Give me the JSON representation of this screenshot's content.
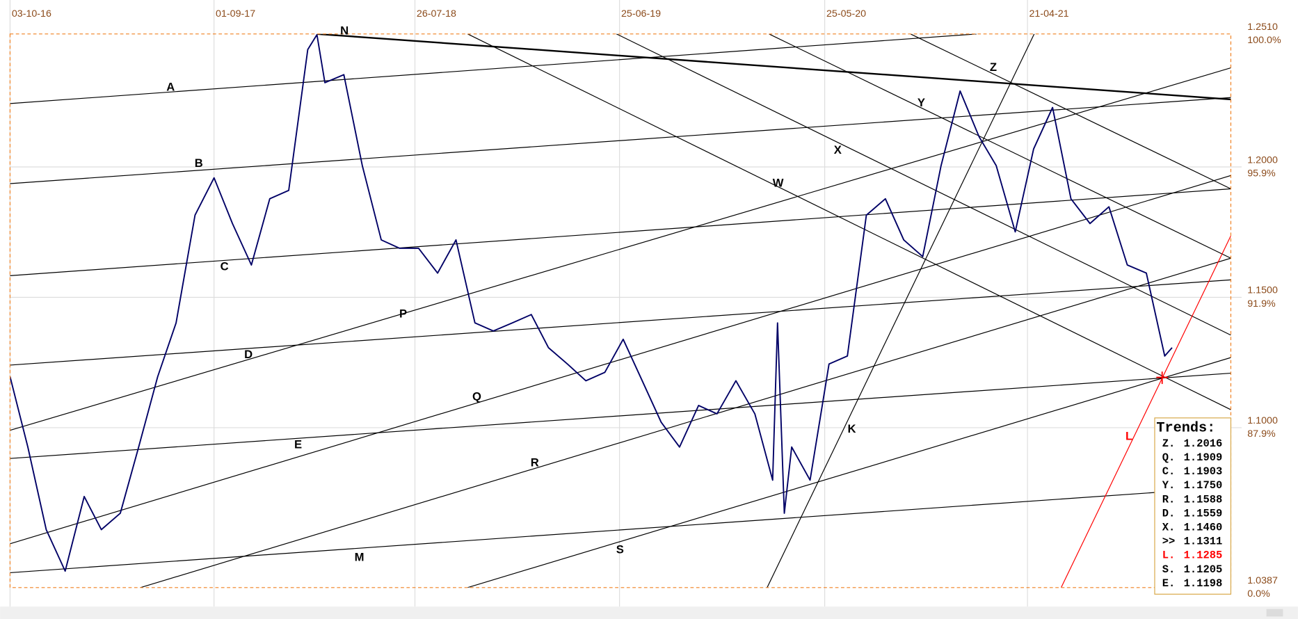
{
  "chart_data": {
    "type": "line",
    "xlim": [
      "03-10-16",
      "19-03-22"
    ],
    "xticks": [
      "03-10-16",
      "01-09-17",
      "26-07-18",
      "25-06-19",
      "25-05-20",
      "21-04-21"
    ],
    "ylim": [
      1.0387,
      1.251
    ],
    "yticks": [
      {
        "value": 1.251,
        "label": "1.2510"
      },
      {
        "value": 1.2,
        "label": "1.2000"
      },
      {
        "value": 1.15,
        "label": "1.1500"
      },
      {
        "value": 1.1,
        "label": "1.1000"
      },
      {
        "value": 1.0387,
        "label": "1.0387"
      }
    ],
    "y_percent_labels": [
      "100.0%",
      "95.9%",
      "91.9%",
      "87.9%",
      "0.0%"
    ],
    "grid": true,
    "series": [
      {
        "color": "#000066",
        "x": [
          "03-10-16",
          "01-11-16",
          "01-12-16",
          "01-01-17",
          "01-02-17",
          "01-03-17",
          "01-04-17",
          "01-05-17",
          "01-06-17",
          "01-07-17",
          "01-08-17",
          "01-09-17",
          "01-10-17",
          "01-11-17",
          "01-12-17",
          "01-01-18",
          "01-02-18",
          "16-02-18",
          "01-03-18",
          "01-04-18",
          "01-05-18",
          "01-06-18",
          "01-07-18",
          "01-08-18",
          "01-09-18",
          "01-10-18",
          "01-11-18",
          "01-12-18",
          "01-01-19",
          "01-02-19",
          "01-03-19",
          "01-04-19",
          "01-05-19",
          "01-06-19",
          "01-07-19",
          "01-08-19",
          "01-09-19",
          "01-10-19",
          "01-11-19",
          "01-12-19",
          "01-01-20",
          "01-02-20",
          "01-03-20",
          "09-03-20",
          "20-03-20",
          "01-04-20",
          "01-05-20",
          "01-06-20",
          "01-07-20",
          "01-08-20",
          "01-09-20",
          "01-10-20",
          "01-11-20",
          "01-12-20",
          "01-01-21",
          "01-02-21",
          "01-03-21",
          "01-04-21",
          "01-05-21",
          "01-06-21",
          "01-07-21",
          "01-08-21",
          "01-09-21",
          "01-10-21",
          "01-11-21",
          "01-12-21",
          "13-12-21"
        ],
        "values": [
          1.1196,
          1.0926,
          1.0609,
          1.045,
          1.0736,
          1.0609,
          1.0672,
          1.0926,
          1.1196,
          1.1402,
          1.1815,
          1.1958,
          1.1783,
          1.1624,
          1.1878,
          1.191,
          1.245,
          1.2507,
          1.2323,
          1.2354,
          1.2005,
          1.172,
          1.1688,
          1.1688,
          1.1593,
          1.172,
          1.1402,
          1.1371,
          1.1402,
          1.1434,
          1.1307,
          1.1244,
          1.118,
          1.1212,
          1.1339,
          1.118,
          1.1021,
          1.0926,
          1.1085,
          1.1053,
          1.118,
          1.1053,
          1.0799,
          1.1402,
          1.0672,
          1.0926,
          1.0799,
          1.1244,
          1.1275,
          1.1815,
          1.1878,
          1.172,
          1.1656,
          1.2005,
          1.2291,
          1.2116,
          1.2005,
          1.1751,
          1.2069,
          1.2228,
          1.1878,
          1.1783,
          1.1847,
          1.1624,
          1.1593,
          1.1275,
          1.1307
        ]
      }
    ],
    "trendlines": [
      {
        "name": "N",
        "color": "#000000",
        "width": 2,
        "x": [
          "16-02-18",
          "19-03-22"
        ],
        "y": [
          1.251,
          1.2259
        ]
      },
      {
        "name": "A",
        "color": "#000000",
        "width": 1,
        "x": [
          "03-10-16",
          "28-01-21"
        ],
        "y": [
          1.2243,
          1.251
        ]
      },
      {
        "name": "B",
        "color": "#000000",
        "width": 1,
        "x": [
          "03-10-16",
          "19-03-22"
        ],
        "y": [
          1.1936,
          1.2266
        ]
      },
      {
        "name": "C",
        "color": "#000000",
        "width": 1,
        "x": [
          "03-10-16",
          "19-03-22"
        ],
        "y": [
          1.1583,
          1.1916
        ]
      },
      {
        "name": "D",
        "color": "#000000",
        "width": 1,
        "x": [
          "03-10-16",
          "19-03-22"
        ],
        "y": [
          1.124,
          1.1567
        ]
      },
      {
        "name": "E",
        "color": "#000000",
        "width": 1,
        "x": [
          "03-10-16",
          "19-03-22"
        ],
        "y": [
          1.0882,
          1.1209
        ]
      },
      {
        "name": "M",
        "color": "#000000",
        "width": 1,
        "x": [
          "03-10-16",
          "19-03-22"
        ],
        "y": [
          1.0444,
          1.0772
        ]
      },
      {
        "name": "P",
        "color": "#000000",
        "width": 1,
        "x": [
          "03-10-16",
          "19-03-22"
        ],
        "y": [
          1.099,
          1.238
        ]
      },
      {
        "name": "Q",
        "color": "#000000",
        "width": 1,
        "x": [
          "03-10-16",
          "19-03-22"
        ],
        "y": [
          1.0555,
          1.1967
        ]
      },
      {
        "name": "R",
        "color": "#000000",
        "width": 1,
        "x": [
          "04-05-17",
          "19-03-22"
        ],
        "y": [
          1.0387,
          1.165
        ]
      },
      {
        "name": "S",
        "color": "#000000",
        "width": 1,
        "x": [
          "20-10-18",
          "19-03-22"
        ],
        "y": [
          1.0387,
          1.1269
        ]
      },
      {
        "name": "K",
        "color": "#000000",
        "width": 1,
        "x": [
          "21-02-20",
          "02-05-21"
        ],
        "y": [
          1.0387,
          1.251
        ]
      },
      {
        "name": "W",
        "color": "#000000",
        "width": 1,
        "x": [
          "20-10-18",
          "19-03-22"
        ],
        "y": [
          1.251,
          1.1069
        ]
      },
      {
        "name": "X",
        "color": "#000000",
        "width": 1,
        "x": [
          "20-06-19",
          "19-03-22"
        ],
        "y": [
          1.251,
          1.1355
        ]
      },
      {
        "name": "Y",
        "color": "#000000",
        "width": 1,
        "x": [
          "24-02-20",
          "19-03-22"
        ],
        "y": [
          1.251,
          1.165
        ]
      },
      {
        "name": "Z",
        "color": "#000000",
        "width": 1,
        "x": [
          "12-10-20",
          "19-03-22"
        ],
        "y": [
          1.251,
          1.1916
        ]
      },
      {
        "name": "L",
        "color": "#ff0000",
        "width": 1,
        "x": [
          "15-06-21",
          "19-03-22"
        ],
        "y": [
          1.0387,
          1.1736
        ]
      }
    ],
    "trends_box": {
      "title": "Trends:",
      "rows": [
        {
          "label": "Z.",
          "value": "1.2016"
        },
        {
          "label": "Q.",
          "value": "1.1909"
        },
        {
          "label": "C.",
          "value": "1.1903"
        },
        {
          "label": "Y.",
          "value": "1.1750"
        },
        {
          "label": "R.",
          "value": "1.1588"
        },
        {
          "label": "D.",
          "value": "1.1559"
        },
        {
          "label": "X.",
          "value": "1.1460"
        },
        {
          "label": ">>",
          "value": "1.1311"
        },
        {
          "label": "L.",
          "value": "1.1285",
          "color": "#ff0000"
        },
        {
          "label": "S.",
          "value": "1.1205"
        },
        {
          "label": "E.",
          "value": "1.1198"
        }
      ]
    }
  }
}
